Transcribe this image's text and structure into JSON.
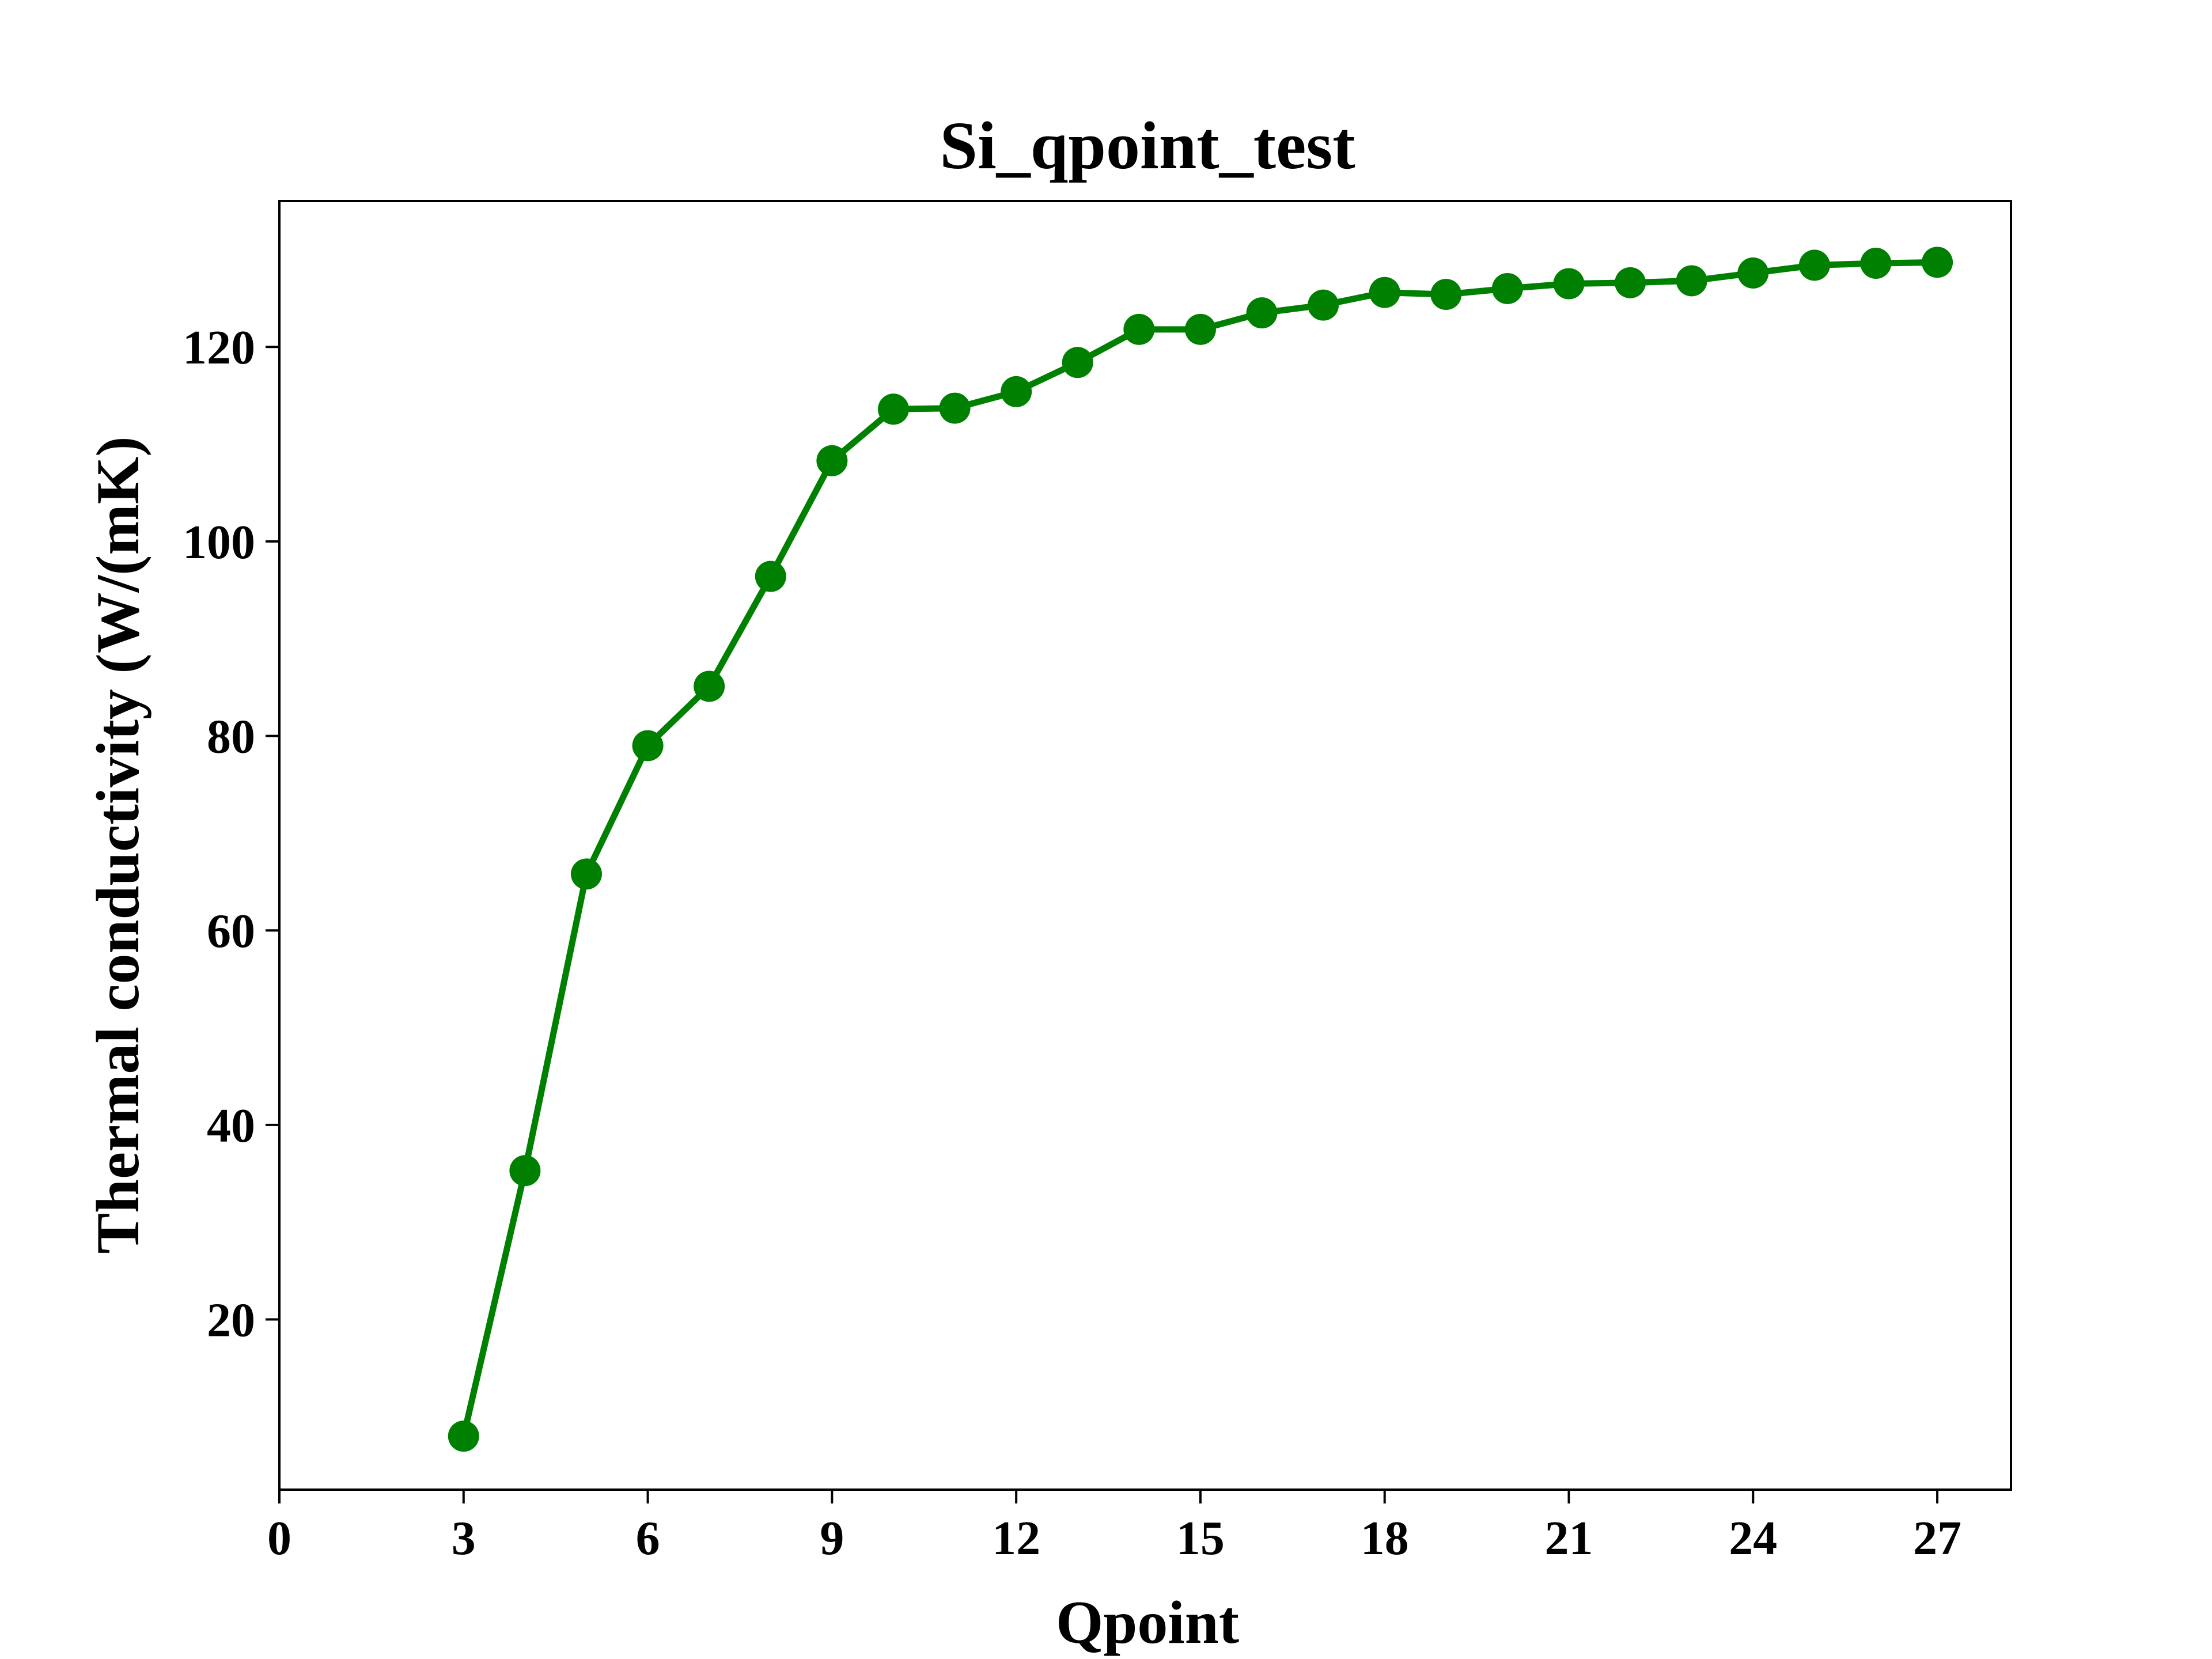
{
  "chart_data": {
    "type": "line",
    "title": "Si_qpoint_test",
    "xlabel": "Qpoint",
    "ylabel": "Thermal conductivity (W/(mK)",
    "xlim": [
      0,
      28.2
    ],
    "ylim": [
      2.5,
      135
    ],
    "xticks": [
      0,
      3,
      6,
      9,
      12,
      15,
      18,
      21,
      24,
      27
    ],
    "yticks": [
      20,
      40,
      60,
      80,
      100,
      120
    ],
    "grid": false,
    "legend": "none",
    "series": [
      {
        "name": "Si_qpoint_test",
        "color": "#008000",
        "marker": "circle",
        "x": [
          3,
          4,
          5,
          6,
          7,
          8,
          9,
          10,
          11,
          12,
          13,
          14,
          15,
          16,
          17,
          18,
          19,
          20,
          21,
          22,
          23,
          24,
          25,
          26,
          27
        ],
        "values": [
          8.0,
          35.3,
          65.8,
          79.0,
          85.1,
          96.4,
          108.3,
          113.6,
          113.7,
          115.4,
          118.4,
          121.8,
          121.8,
          123.5,
          124.3,
          125.6,
          125.4,
          126.0,
          126.5,
          126.6,
          126.8,
          127.6,
          128.4,
          128.6,
          128.7
        ]
      }
    ]
  }
}
